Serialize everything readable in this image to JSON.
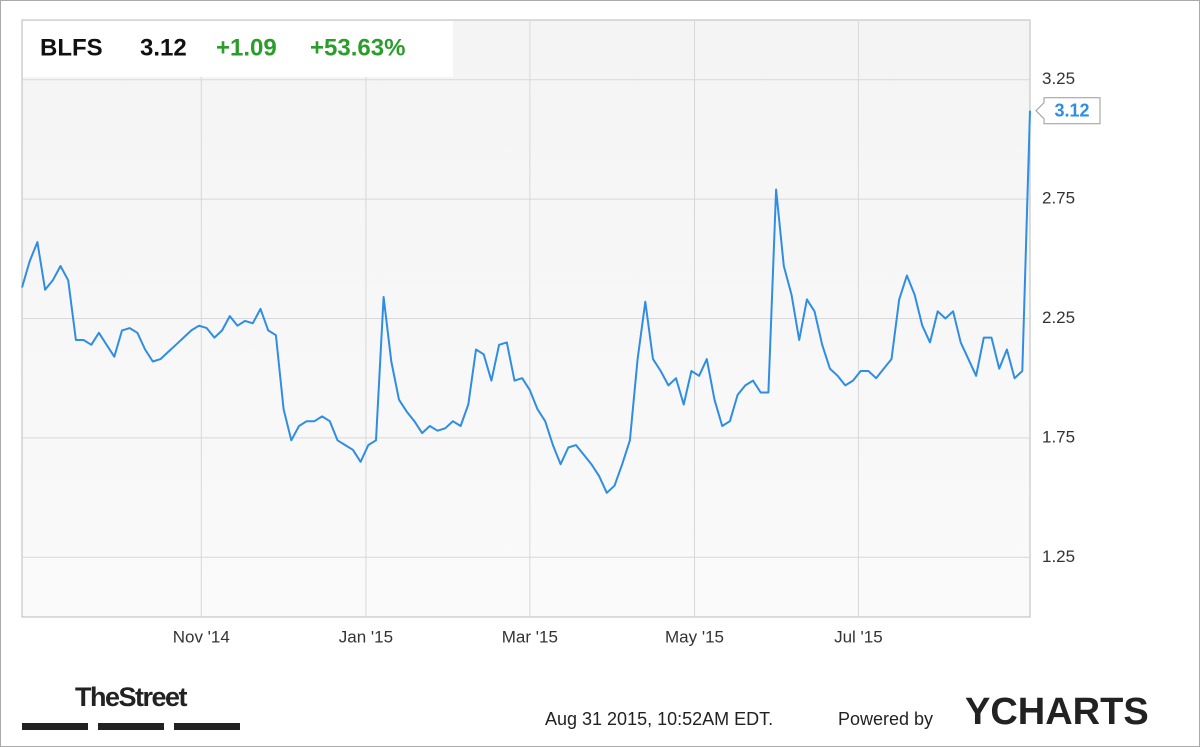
{
  "header": {
    "ticker": "BLFS",
    "price": "3.12",
    "change": "+1.09",
    "change_pct": "+53.63%"
  },
  "chart_data": {
    "type": "line",
    "color": "#2f8de4",
    "values": [
      2.38,
      2.49,
      2.57,
      2.37,
      2.41,
      2.47,
      2.41,
      2.16,
      2.16,
      2.14,
      2.19,
      2.14,
      2.09,
      2.2,
      2.21,
      2.19,
      2.12,
      2.07,
      2.08,
      2.11,
      2.14,
      2.17,
      2.2,
      2.22,
      2.21,
      2.17,
      2.2,
      2.26,
      2.22,
      2.24,
      2.23,
      2.29,
      2.2,
      2.18,
      1.87,
      1.74,
      1.8,
      1.82,
      1.82,
      1.84,
      1.82,
      1.74,
      1.72,
      1.7,
      1.65,
      1.72,
      1.74,
      2.34,
      2.07,
      1.91,
      1.86,
      1.82,
      1.77,
      1.8,
      1.78,
      1.79,
      1.82,
      1.8,
      1.89,
      2.12,
      2.1,
      1.99,
      2.14,
      2.15,
      1.99,
      2.0,
      1.95,
      1.87,
      1.82,
      1.72,
      1.64,
      1.71,
      1.72,
      1.68,
      1.64,
      1.59,
      1.52,
      1.55,
      1.64,
      1.74,
      2.08,
      2.32,
      2.08,
      2.03,
      1.97,
      2.0,
      1.89,
      2.03,
      2.01,
      2.08,
      1.91,
      1.8,
      1.82,
      1.93,
      1.97,
      1.99,
      1.94,
      1.94,
      2.79,
      2.47,
      2.35,
      2.16,
      2.33,
      2.28,
      2.14,
      2.04,
      2.01,
      1.97,
      1.99,
      2.03,
      2.03,
      2.0,
      2.04,
      2.08,
      2.33,
      2.43,
      2.35,
      2.22,
      2.15,
      2.28,
      2.25,
      2.28,
      2.15,
      2.08,
      2.01,
      2.17,
      2.17,
      2.04,
      2.12,
      2.0,
      2.03,
      3.12
    ],
    "xlim": [
      0,
      131
    ],
    "xticks": [
      {
        "value": 23.3,
        "label": "Nov '14"
      },
      {
        "value": 44.7,
        "label": "Jan '15"
      },
      {
        "value": 66.0,
        "label": "Mar '15"
      },
      {
        "value": 87.4,
        "label": "May '15"
      },
      {
        "value": 108.7,
        "label": "Jul '15"
      }
    ],
    "ylim": [
      1.0,
      3.5
    ],
    "yticks": [
      1.25,
      1.75,
      2.25,
      2.75,
      3.25
    ],
    "grid": true
  },
  "footer": {
    "brand": "TheStreet",
    "timestamp": "Aug 31 2015, 10:52AM EDT.",
    "powered": "Powered by",
    "provider": "YCHARTS"
  }
}
